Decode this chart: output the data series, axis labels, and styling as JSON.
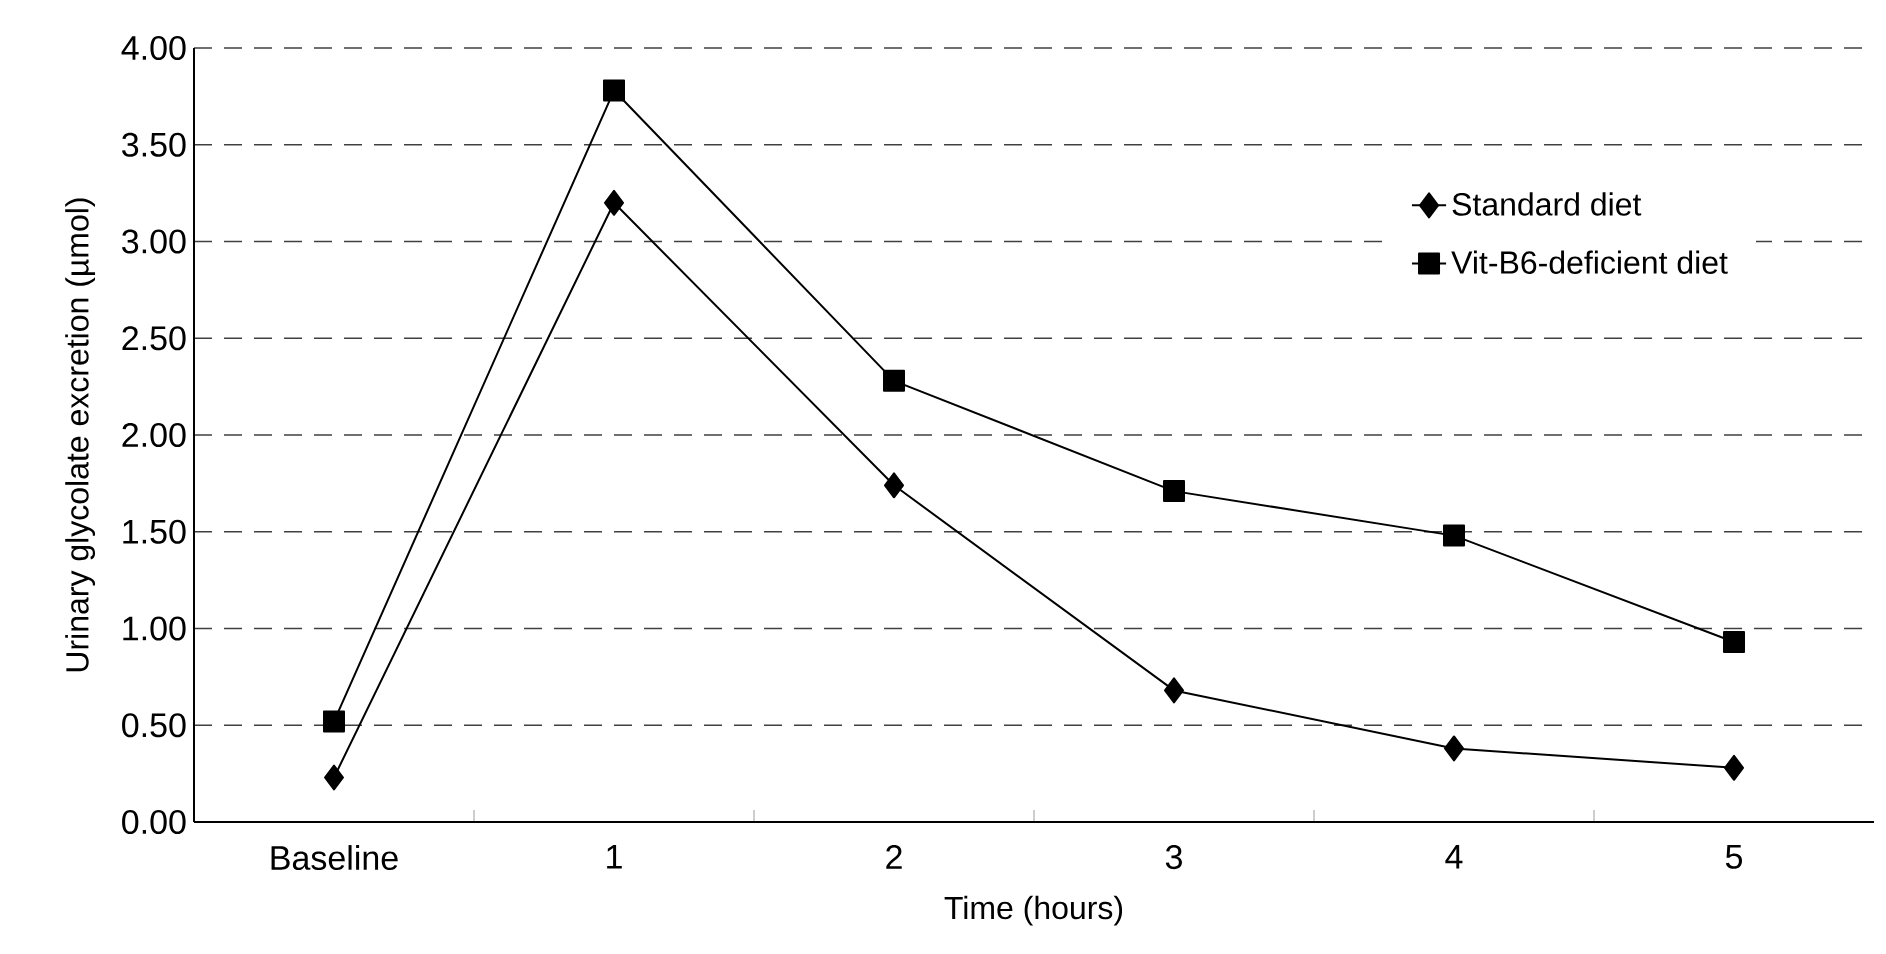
{
  "chart_data": {
    "type": "line",
    "xlabel": "Time (hours)",
    "ylabel": "Urinary glycolate excretion (µmol)",
    "categories": [
      "Baseline",
      "1",
      "2",
      "3",
      "4",
      "5"
    ],
    "series": [
      {
        "name": "Standard diet",
        "color": "#000000",
        "marker": "diamond",
        "values": [
          0.23,
          3.2,
          1.74,
          0.68,
          0.38,
          0.28
        ]
      },
      {
        "name": "Vit-B6-deficient diet",
        "color": "#000000",
        "marker": "square",
        "values": [
          0.52,
          3.78,
          2.28,
          1.71,
          1.48,
          0.93
        ]
      }
    ],
    "ylim": [
      0,
      4
    ],
    "yticks": [
      {
        "value": 0,
        "label": "0.00"
      },
      {
        "value": 0.5,
        "label": "0.50"
      },
      {
        "value": 1,
        "label": "1.00"
      },
      {
        "value": 1.5,
        "label": "1.50"
      },
      {
        "value": 2,
        "label": "2.00"
      },
      {
        "value": 2.5,
        "label": "2.50"
      },
      {
        "value": 3,
        "label": "3.00"
      },
      {
        "value": 3.5,
        "label": "3.50"
      },
      {
        "value": 4,
        "label": "4.00"
      }
    ],
    "grid": "y",
    "legend": "top right",
    "line_style": "solid"
  }
}
